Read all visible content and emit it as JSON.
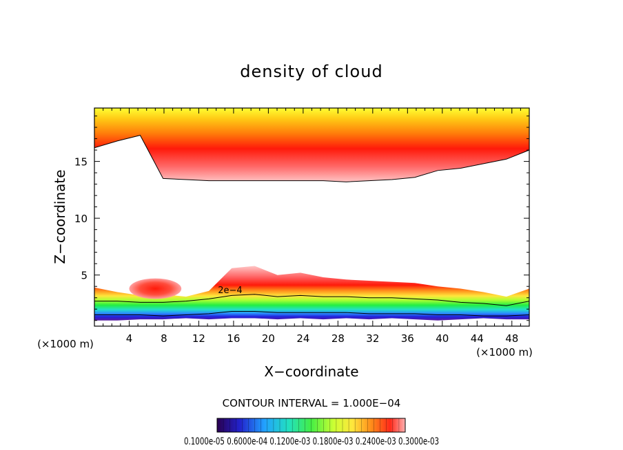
{
  "chart_data": {
    "type": "heatmap",
    "title": "density of cloud",
    "xlabel": "X−coordinate",
    "ylabel": "Z−coordinate",
    "x_unit_left": "(×1000 m)",
    "x_unit_right": "(×1000 m)",
    "xlim": [
      0,
      50
    ],
    "ylim": [
      0.5,
      19.7
    ],
    "x_ticks": [
      "4",
      "8",
      "12",
      "16",
      "20",
      "24",
      "28",
      "32",
      "36",
      "40",
      "44",
      "48"
    ],
    "y_ticks": [
      "5",
      "10",
      "15"
    ],
    "contour_interval_text": "CONTOUR INTERVAL = 1.000E−04",
    "contour_label": "2e−4",
    "colorbar_labels_text": "0.1000e-05 0.6000e-04 0.1200e-03 0.1800e-03 0.2400e-03 0.3000e-03",
    "upper_layer": {
      "description_values": "anvil cloud layer",
      "z_bottom": [
        16.2,
        16.8,
        17.3,
        13.5,
        13.4,
        13.3,
        13.3,
        13.3,
        13.3,
        13.3,
        13.3,
        13.2,
        13.3,
        13.4,
        13.6,
        14.2,
        14.4,
        14.8,
        15.2,
        16.0
      ],
      "z_top": 19.7
    },
    "lower_layer": {
      "z_bottom": [
        1.0,
        1.0,
        1.1,
        1.1,
        1.2,
        1.1,
        1.2,
        1.2,
        1.1,
        1.2,
        1.1,
        1.2,
        1.1,
        1.2,
        1.1,
        1.0,
        1.1,
        1.2,
        1.1,
        1.1
      ],
      "z_top": [
        3.9,
        3.5,
        3.2,
        3.3,
        3.1,
        3.6,
        5.6,
        5.8,
        5.0,
        5.2,
        4.8,
        4.6,
        4.5,
        4.4,
        4.3,
        4.0,
        3.8,
        3.5,
        3.1,
        3.8
      ]
    }
  }
}
